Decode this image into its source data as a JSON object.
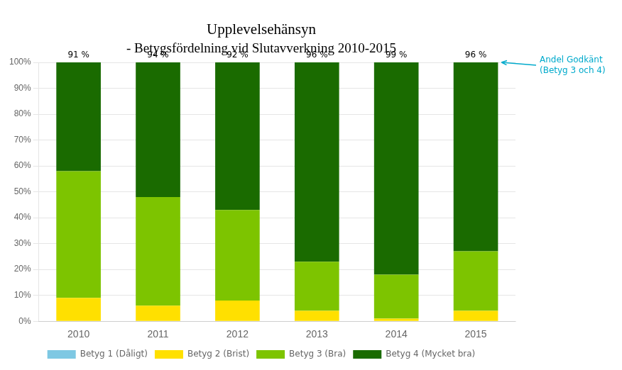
{
  "chart_data": {
    "type": "bar",
    "title": "Upplevelsehänsyn",
    "subtitle": "- Betygsfördelning vid Slutavverkning 2010-2015",
    "categories": [
      "2010",
      "2011",
      "2012",
      "2013",
      "2014",
      "2015"
    ],
    "series": [
      {
        "name": "Betyg 1 (Dåligt)",
        "color": "#7EC8E3",
        "values": [
          0,
          0,
          0,
          0,
          0,
          0
        ]
      },
      {
        "name": "Betyg 2 (Brist)",
        "color": "#FFE000",
        "values": [
          9,
          6,
          8,
          4,
          1,
          4
        ]
      },
      {
        "name": "Betyg 3 (Bra)",
        "color": "#7DC400",
        "values": [
          49,
          42,
          35,
          19,
          17,
          23
        ]
      },
      {
        "name": "Betyg 4 (Mycket bra)",
        "color": "#1A6B00",
        "values": [
          42,
          52,
          57,
          77,
          82,
          73
        ]
      }
    ],
    "stacked": true,
    "approved_values": [
      91,
      94,
      92,
      96,
      99,
      96
    ],
    "approved_labels": [
      "91 %",
      "94 %",
      "92 %",
      "96 %",
      "99 %",
      "96 %"
    ],
    "annotation": {
      "text": "Andel Godkänt\n(Betyg 3 och 4)",
      "color": "#00AACC"
    },
    "ylim": [
      0,
      100
    ],
    "yticks": [
      {
        "value": 0,
        "label": "0%"
      },
      {
        "value": 10,
        "label": "10%"
      },
      {
        "value": 20,
        "label": "20%"
      },
      {
        "value": 30,
        "label": "30%"
      },
      {
        "value": 40,
        "label": "40%"
      },
      {
        "value": 50,
        "label": "50%"
      },
      {
        "value": 60,
        "label": "60%"
      },
      {
        "value": 70,
        "label": "70%"
      },
      {
        "value": 80,
        "label": "80%"
      },
      {
        "value": 90,
        "label": "90%"
      },
      {
        "value": 100,
        "label": "100%"
      }
    ],
    "grid": true,
    "legend": "bottom"
  }
}
